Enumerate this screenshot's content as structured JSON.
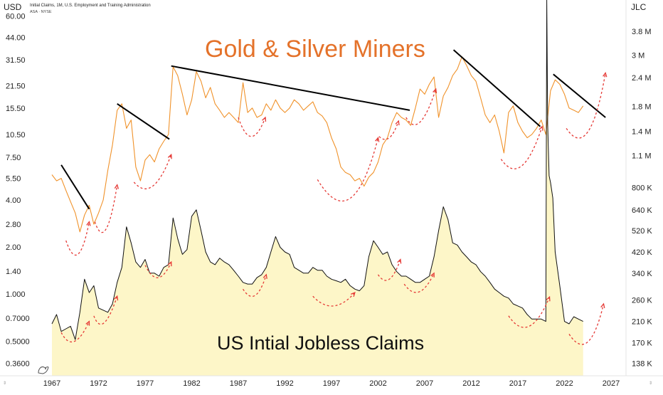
{
  "header": {
    "left_currency": "USD",
    "right_currency": "JLC",
    "source_line1": "Initial Claims, 1M, U.S. Employment and Training Administration",
    "source_line2": "ASA · NYSE"
  },
  "chart_data": {
    "type": "line",
    "title": "Gold & Silver Miners",
    "subtitle": "US Intial Jobless Claims",
    "x_ticks": [
      "1967",
      "1972",
      "1977",
      "1982",
      "1987",
      "1992",
      "1997",
      "2002",
      "2007",
      "2012",
      "2017",
      "2022",
      "2027"
    ],
    "xlim": [
      1966.5,
      2029.5
    ],
    "left_axis": {
      "scale": "log",
      "ticks": [
        "60.00",
        "44.00",
        "31.50",
        "21.50",
        "15.50",
        "10.50",
        "7.50",
        "5.50",
        "4.00",
        "2.80",
        "2.00",
        "1.40",
        "1.000",
        "0.7000",
        "0.5000",
        "0.3600"
      ],
      "ylim": [
        0.3,
        70
      ]
    },
    "right_axis": {
      "scale": "log",
      "ticks": [
        "3.8 M",
        "3 M",
        "2.4 M",
        "1.8 M",
        "1.4 M",
        "1.1 M",
        "800 K",
        "640 K",
        "520 K",
        "420 K",
        "340 K",
        "260 K",
        "210 K",
        "170 K",
        "138 K"
      ],
      "ylim": [
        122000,
        5200000
      ]
    },
    "series": [
      {
        "color": "#f0922a",
        "axis": "left",
        "x": [
          1967.0,
          1967.5,
          1968.0,
          1968.5,
          1969.0,
          1969.5,
          1970.0,
          1970.5,
          1971.0,
          1971.5,
          1972.0,
          1972.5,
          1973.0,
          1973.5,
          1974.0,
          1974.5,
          1975.0,
          1975.5,
          1976.0,
          1976.5,
          1977.0,
          1977.5,
          1978.0,
          1978.5,
          1979.0,
          1979.5,
          1980.0,
          1980.5,
          1981.0,
          1981.5,
          1982.0,
          1982.5,
          1983.0,
          1983.5,
          1984.0,
          1984.5,
          1985.0,
          1985.5,
          1986.0,
          1986.5,
          1987.0,
          1987.5,
          1988.0,
          1988.5,
          1989.0,
          1989.5,
          1990.0,
          1990.5,
          1991.0,
          1991.5,
          1992.0,
          1992.5,
          1993.0,
          1993.5,
          1994.0,
          1994.5,
          1995.0,
          1995.5,
          1996.0,
          1996.5,
          1997.0,
          1997.5,
          1998.0,
          1998.5,
          1999.0,
          1999.5,
          2000.0,
          2000.5,
          2001.0,
          2001.5,
          2002.0,
          2002.5,
          2003.0,
          2003.5,
          2004.0,
          2004.5,
          2005.0,
          2005.5,
          2006.0,
          2006.5,
          2007.0,
          2007.5,
          2008.0,
          2008.5,
          2009.0,
          2009.5,
          2010.0,
          2010.5,
          2011.0,
          2011.5,
          2012.0,
          2012.5,
          2013.0,
          2013.5,
          2014.0,
          2014.5,
          2015.0,
          2015.5,
          2016.0,
          2016.5,
          2017.0,
          2017.5,
          2018.0,
          2018.5,
          2019.0,
          2019.5,
          2020.0,
          2020.5,
          2021.0,
          2021.5,
          2022.0,
          2022.5,
          2023.0,
          2023.5,
          2024.0
        ],
        "y": [
          5.8,
          5.3,
          5.5,
          4.6,
          3.9,
          3.3,
          2.5,
          3.2,
          3.7,
          2.8,
          3.3,
          4.0,
          6.2,
          9.0,
          15.0,
          16.5,
          11.5,
          13.0,
          6.5,
          5.3,
          7.2,
          7.8,
          7.0,
          8.5,
          9.5,
          10.5,
          28.5,
          25.0,
          19.0,
          14.0,
          17.5,
          26.5,
          23.0,
          18.0,
          21.0,
          16.5,
          15.0,
          13.5,
          14.5,
          13.5,
          12.5,
          22.5,
          14.5,
          15.5,
          13.5,
          14.0,
          16.5,
          15.0,
          17.5,
          15.5,
          14.5,
          15.5,
          17.5,
          16.5,
          15.0,
          16.0,
          17.0,
          14.5,
          13.8,
          12.5,
          10.0,
          8.5,
          6.5,
          6.0,
          5.8,
          5.3,
          5.5,
          4.9,
          5.6,
          6.0,
          7.0,
          9.0,
          10.0,
          12.5,
          14.5,
          13.5,
          13.0,
          12.0,
          15.5,
          20.5,
          19.0,
          22.0,
          24.5,
          13.5,
          18.5,
          21.0,
          25.0,
          27.5,
          33.0,
          29.0,
          25.0,
          23.0,
          18.0,
          14.0,
          12.5,
          14.0,
          11.0,
          8.0,
          14.5,
          16.0,
          12.5,
          11.0,
          10.0,
          10.5,
          11.5,
          13.0,
          10.5,
          20.0,
          23.5,
          22.0,
          19.0,
          15.5,
          15.0,
          14.5,
          16.0
        ]
      },
      {
        "color": "#111111",
        "axis": "right",
        "fill": "#fdf6c8",
        "x": [
          1967.0,
          1967.5,
          1968.0,
          1968.5,
          1969.0,
          1969.5,
          1970.0,
          1970.5,
          1971.0,
          1971.5,
          1972.0,
          1972.5,
          1973.0,
          1973.5,
          1974.0,
          1974.5,
          1975.0,
          1975.5,
          1976.0,
          1976.5,
          1977.0,
          1977.5,
          1978.0,
          1978.5,
          1979.0,
          1979.5,
          1980.0,
          1980.5,
          1981.0,
          1981.5,
          1982.0,
          1982.5,
          1983.0,
          1983.5,
          1984.0,
          1984.5,
          1985.0,
          1985.5,
          1986.0,
          1986.5,
          1987.0,
          1987.5,
          1988.0,
          1988.5,
          1989.0,
          1989.5,
          1990.0,
          1990.5,
          1991.0,
          1991.5,
          1992.0,
          1992.5,
          1993.0,
          1993.5,
          1994.0,
          1994.5,
          1995.0,
          1995.5,
          1996.0,
          1996.5,
          1997.0,
          1997.5,
          1998.0,
          1998.5,
          1999.0,
          1999.5,
          2000.0,
          2000.5,
          2001.0,
          2001.5,
          2002.0,
          2002.5,
          2003.0,
          2003.5,
          2004.0,
          2004.5,
          2005.0,
          2005.5,
          2006.0,
          2006.5,
          2007.0,
          2007.5,
          2008.0,
          2008.5,
          2009.0,
          2009.5,
          2010.0,
          2010.5,
          2011.0,
          2011.5,
          2012.0,
          2012.5,
          2013.0,
          2013.5,
          2014.0,
          2014.5,
          2015.0,
          2015.5,
          2016.0,
          2016.5,
          2017.0,
          2017.5,
          2018.0,
          2018.5,
          2019.0,
          2019.5,
          2020.0,
          2020.1,
          2020.2,
          2020.35,
          2020.5,
          2020.75,
          2021.0,
          2021.5,
          2022.0,
          2022.5,
          2023.0,
          2023.5,
          2024.0
        ],
        "y": [
          205000,
          225000,
          190000,
          195000,
          200000,
          175000,
          230000,
          320000,
          280000,
          300000,
          240000,
          235000,
          230000,
          250000,
          310000,
          360000,
          540000,
          460000,
          380000,
          360000,
          390000,
          340000,
          340000,
          330000,
          360000,
          370000,
          590000,
          480000,
          410000,
          430000,
          600000,
          640000,
          520000,
          420000,
          380000,
          370000,
          395000,
          380000,
          370000,
          350000,
          330000,
          310000,
          305000,
          305000,
          325000,
          335000,
          360000,
          420000,
          490000,
          440000,
          420000,
          410000,
          360000,
          350000,
          340000,
          340000,
          360000,
          350000,
          350000,
          330000,
          320000,
          315000,
          310000,
          320000,
          300000,
          290000,
          285000,
          300000,
          400000,
          470000,
          440000,
          410000,
          420000,
          370000,
          345000,
          330000,
          330000,
          320000,
          310000,
          310000,
          320000,
          330000,
          400000,
          520000,
          660000,
          580000,
          460000,
          450000,
          420000,
          400000,
          380000,
          370000,
          345000,
          330000,
          310000,
          290000,
          280000,
          270000,
          265000,
          250000,
          245000,
          240000,
          225000,
          215000,
          215000,
          215000,
          210000,
          5200000,
          1500000,
          900000,
          840000,
          720000,
          420000,
          300000,
          210000,
          205000,
          220000,
          215000,
          210000
        ]
      }
    ],
    "trendlines": [
      {
        "x": [
          1968.0,
          1971.0
        ],
        "y": [
          6.7,
          3.5
        ]
      },
      {
        "x": [
          1974.0,
          1979.6
        ],
        "y": [
          16.5,
          9.8
        ]
      },
      {
        "x": [
          1979.8,
          2005.4
        ],
        "y": [
          28.8,
          15.0
        ]
      },
      {
        "x": [
          2010.1,
          2019.4
        ],
        "y": [
          36.5,
          11.8
        ]
      },
      {
        "x": [
          2020.8,
          2026.4
        ],
        "y": [
          25.5,
          13.5
        ]
      }
    ],
    "projection_arrows": [
      {
        "axis": "left",
        "x": [
          1968.5,
          1969.8,
          1971.0
        ],
        "y": [
          2.2,
          1.8,
          2.9
        ]
      },
      {
        "axis": "left",
        "x": [
          1971.6,
          1972.8,
          1974.0
        ],
        "y": [
          2.9,
          2.6,
          5.0
        ]
      },
      {
        "axis": "left",
        "x": [
          1975.8,
          1977.8,
          1979.8
        ],
        "y": [
          5.2,
          4.9,
          7.8
        ]
      },
      {
        "axis": "left",
        "x": [
          1987.0,
          1988.4,
          1989.9
        ],
        "y": [
          13.5,
          10.2,
          13.5
        ]
      },
      {
        "axis": "left",
        "x": [
          1995.5,
          1999.0,
          2002.0
        ],
        "y": [
          5.4,
          4.1,
          10.0
        ]
      },
      {
        "axis": "left",
        "x": [
          2002.1,
          2003.2,
          2004.2
        ],
        "y": [
          10.2,
          10.0,
          12.8
        ]
      },
      {
        "axis": "left",
        "x": [
          2005.0,
          2006.5,
          2008.2
        ],
        "y": [
          13.5,
          12.6,
          20.5
        ]
      },
      {
        "axis": "left",
        "x": [
          2015.2,
          2017.4,
          2019.6
        ],
        "y": [
          7.3,
          6.6,
          11.8
        ]
      },
      {
        "axis": "left",
        "x": [
          2022.2,
          2024.5,
          2026.4
        ],
        "y": [
          11.5,
          10.9,
          26.0
        ]
      },
      {
        "axis": "right",
        "x": [
          1968.0,
          1969.4,
          1971.0
        ],
        "y": [
          188000,
          172000,
          210000
        ]
      },
      {
        "axis": "right",
        "x": [
          1971.5,
          1972.6,
          1974.0
        ],
        "y": [
          222000,
          207000,
          270000
        ]
      },
      {
        "axis": "right",
        "x": [
          1977.0,
          1978.4,
          1979.8
        ],
        "y": [
          368000,
          325000,
          380000
        ]
      },
      {
        "axis": "right",
        "x": [
          1987.5,
          1988.8,
          1990.0
        ],
        "y": [
          290000,
          272000,
          335000
        ]
      },
      {
        "axis": "right",
        "x": [
          1995.0,
          1997.2,
          1999.5
        ],
        "y": [
          270000,
          245000,
          280000
        ]
      },
      {
        "axis": "right",
        "x": [
          2002.0,
          2003.2,
          2004.4
        ],
        "y": [
          335000,
          320000,
          390000
        ]
      },
      {
        "axis": "right",
        "x": [
          2004.8,
          2006.4,
          2008.0
        ],
        "y": [
          305000,
          282000,
          340000
        ]
      },
      {
        "axis": "right",
        "x": [
          2016.0,
          2018.2,
          2020.4
        ],
        "y": [
          222000,
          200000,
          268000
        ]
      },
      {
        "axis": "right",
        "x": [
          2022.5,
          2024.5,
          2026.2
        ],
        "y": [
          185000,
          171000,
          250000
        ]
      }
    ]
  }
}
